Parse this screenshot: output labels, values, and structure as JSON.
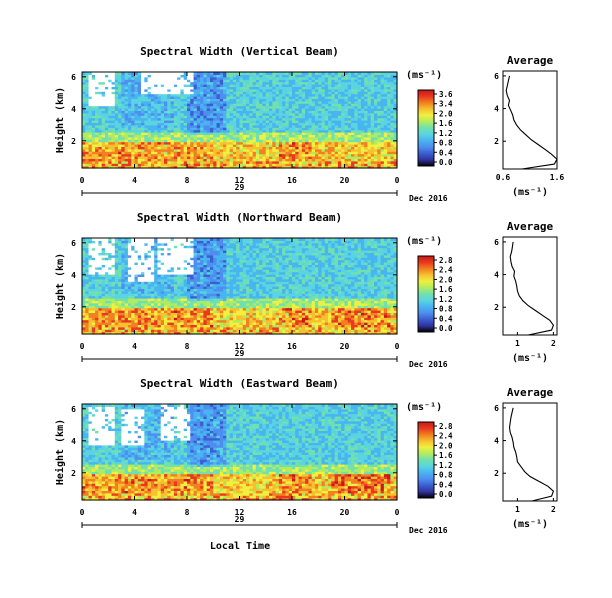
{
  "figure": {
    "x_axis_label": "Local Time",
    "date_label": "Dec 2016",
    "day_label": "29",
    "x_tick_labels": [
      "0",
      "4",
      "8",
      "12",
      "16",
      "20",
      "0"
    ],
    "y_tick_labels": [
      "2",
      "4",
      "6"
    ],
    "y_axis_label": "Height (km)",
    "units_label": "(ms⁻¹)",
    "profile_title": "Average",
    "profile_xlabel": "(ms⁻¹)"
  },
  "colors": {
    "colormap": [
      "#000000",
      "#3333a0",
      "#3a5fd0",
      "#4f8ef0",
      "#48b4f0",
      "#5ad4e0",
      "#70e0b0",
      "#b0ec60",
      "#f0f040",
      "#f8c030",
      "#f08020",
      "#e83820",
      "#c81818"
    ],
    "missing": "#ffffff"
  },
  "chart_data": [
    {
      "type": "heatmap",
      "title": "Spectral Width (Vertical Beam)",
      "xlabel": "",
      "ylabel": "Height (km)",
      "x_range_hours": [
        0,
        24
      ],
      "y_range_km": [
        0.3,
        6.3
      ],
      "colorbar_ticks": [
        "3.6",
        "3.4",
        "2.0",
        "1.6",
        "1.2",
        "0.8",
        "0.4",
        "0.0"
      ],
      "colorbar_range": [
        0,
        3.6
      ],
      "average_profile": {
        "title": "Average",
        "xlabel": "(ms⁻¹)",
        "x_tick_labels": [
          "0.6",
          "1.6"
        ],
        "xlim": [
          0.6,
          1.6
        ],
        "y_tick_labels": [
          "2",
          "4",
          "6"
        ],
        "height_km": [
          0.3,
          0.6,
          0.9,
          1.2,
          1.5,
          1.8,
          2.1,
          2.4,
          2.7,
          3.0,
          3.3,
          3.6,
          3.9,
          4.2,
          4.5,
          4.8,
          5.1,
          5.4,
          5.7,
          6.0
        ],
        "width_ms": [
          0.95,
          1.55,
          1.6,
          1.5,
          1.38,
          1.25,
          1.12,
          1.02,
          0.92,
          0.85,
          0.8,
          0.78,
          0.74,
          0.7,
          0.72,
          0.68,
          0.66,
          0.68,
          0.7,
          0.72
        ]
      }
    },
    {
      "type": "heatmap",
      "title": "Spectral Width (Northward Beam)",
      "xlabel": "",
      "ylabel": "Height (km)",
      "x_range_hours": [
        0,
        24
      ],
      "y_range_km": [
        0.3,
        6.3
      ],
      "colorbar_ticks": [
        "2.8",
        "2.4",
        "2.0",
        "1.6",
        "1.2",
        "0.8",
        "0.4",
        "0.0"
      ],
      "colorbar_range": [
        0,
        2.8
      ],
      "average_profile": {
        "title": "Average",
        "xlabel": "(ms⁻¹)",
        "x_tick_labels": [
          "1",
          "2"
        ],
        "xlim": [
          0.6,
          2.1
        ],
        "y_tick_labels": [
          "2",
          "4",
          "6"
        ],
        "height_km": [
          0.3,
          0.6,
          0.9,
          1.2,
          1.5,
          1.8,
          2.1,
          2.4,
          2.7,
          3.0,
          3.3,
          3.6,
          3.9,
          4.2,
          4.5,
          4.8,
          5.1,
          5.4,
          5.7,
          6.0
        ],
        "width_ms": [
          1.3,
          1.95,
          2.0,
          1.9,
          1.7,
          1.5,
          1.3,
          1.15,
          1.05,
          1.0,
          0.98,
          0.95,
          0.9,
          0.92,
          0.85,
          0.82,
          0.8,
          0.84,
          0.86,
          0.88
        ]
      }
    },
    {
      "type": "heatmap",
      "title": "Spectral Width (Eastward Beam)",
      "xlabel": "Local Time",
      "ylabel": "Height (km)",
      "x_range_hours": [
        0,
        24
      ],
      "y_range_km": [
        0.3,
        6.3
      ],
      "colorbar_ticks": [
        "2.8",
        "2.4",
        "2.0",
        "1.6",
        "1.2",
        "0.8",
        "0.4",
        "0.0"
      ],
      "colorbar_range": [
        0,
        2.8
      ],
      "average_profile": {
        "title": "Average",
        "xlabel": "(ms⁻¹)",
        "x_tick_labels": [
          "1",
          "2"
        ],
        "xlim": [
          0.6,
          2.1
        ],
        "y_tick_labels": [
          "2",
          "4",
          "6"
        ],
        "height_km": [
          0.3,
          0.6,
          0.9,
          1.2,
          1.5,
          1.8,
          2.1,
          2.4,
          2.7,
          3.0,
          3.3,
          3.6,
          3.9,
          4.2,
          4.5,
          4.8,
          5.1,
          5.4,
          5.7,
          6.0
        ],
        "width_ms": [
          1.4,
          1.95,
          2.0,
          1.85,
          1.6,
          1.35,
          1.2,
          1.1,
          1.0,
          0.98,
          0.95,
          0.9,
          0.88,
          0.85,
          0.8,
          0.78,
          0.8,
          0.82,
          0.85,
          0.88
        ]
      }
    }
  ]
}
